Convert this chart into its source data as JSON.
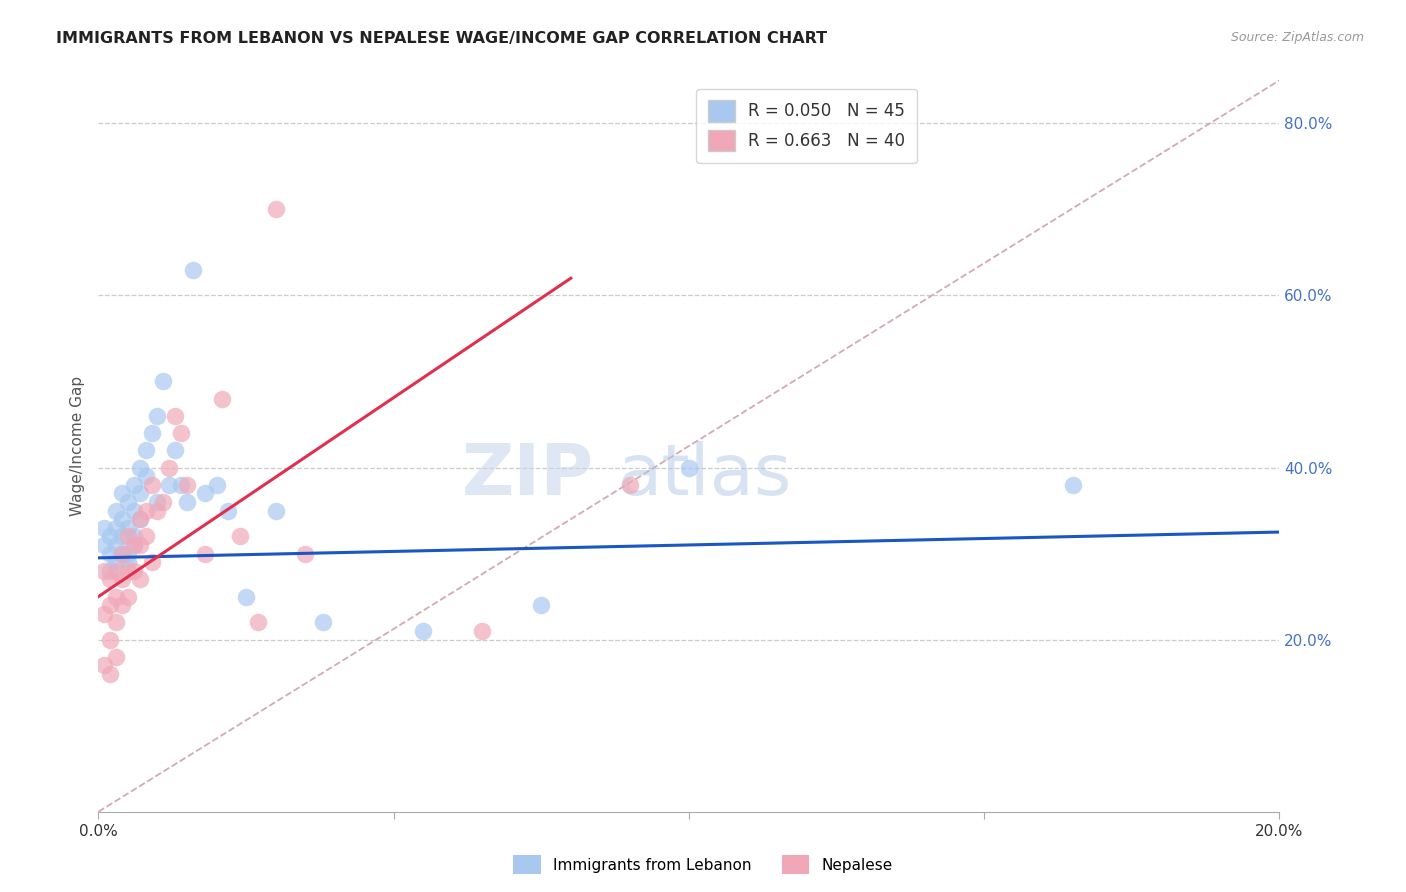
{
  "title": "IMMIGRANTS FROM LEBANON VS NEPALESE WAGE/INCOME GAP CORRELATION CHART",
  "source": "Source: ZipAtlas.com",
  "ylabel": "Wage/Income Gap",
  "xlim": [
    0.0,
    0.2
  ],
  "ylim": [
    0.0,
    0.85
  ],
  "legend_r1": "R = 0.050",
  "legend_n1": "N = 45",
  "legend_r2": "R = 0.663",
  "legend_n2": "N = 40",
  "color_blue": "#a8c8f0",
  "color_pink": "#f0a8b8",
  "color_line_blue": "#1a56c4",
  "color_line_pink": "#e03050",
  "color_diag": "#d0a0a8",
  "color_title": "#222222",
  "color_axis_right": "#4472c4",
  "watermark_zip": "ZIP",
  "watermark_atlas": "atlas",
  "blue_line_x0": 0.0,
  "blue_line_y0": 0.295,
  "blue_line_x1": 0.2,
  "blue_line_y1": 0.325,
  "pink_line_x0": 0.0,
  "pink_line_y0": 0.25,
  "pink_line_x1": 0.08,
  "pink_line_y1": 0.62,
  "blue_points_x": [
    0.001,
    0.001,
    0.002,
    0.002,
    0.002,
    0.003,
    0.003,
    0.003,
    0.003,
    0.004,
    0.004,
    0.004,
    0.004,
    0.005,
    0.005,
    0.005,
    0.005,
    0.006,
    0.006,
    0.006,
    0.006,
    0.007,
    0.007,
    0.007,
    0.008,
    0.008,
    0.009,
    0.01,
    0.01,
    0.011,
    0.012,
    0.013,
    0.014,
    0.015,
    0.016,
    0.018,
    0.02,
    0.022,
    0.025,
    0.03,
    0.038,
    0.055,
    0.075,
    0.1,
    0.165
  ],
  "blue_points_y": [
    0.31,
    0.33,
    0.3,
    0.32,
    0.28,
    0.31,
    0.33,
    0.35,
    0.29,
    0.32,
    0.3,
    0.37,
    0.34,
    0.3,
    0.33,
    0.36,
    0.29,
    0.38,
    0.32,
    0.35,
    0.31,
    0.4,
    0.37,
    0.34,
    0.42,
    0.39,
    0.44,
    0.46,
    0.36,
    0.5,
    0.38,
    0.42,
    0.38,
    0.36,
    0.63,
    0.37,
    0.38,
    0.35,
    0.25,
    0.35,
    0.22,
    0.21,
    0.24,
    0.4,
    0.38
  ],
  "pink_points_x": [
    0.001,
    0.001,
    0.001,
    0.002,
    0.002,
    0.002,
    0.002,
    0.003,
    0.003,
    0.003,
    0.003,
    0.004,
    0.004,
    0.004,
    0.005,
    0.005,
    0.005,
    0.006,
    0.006,
    0.007,
    0.007,
    0.007,
    0.008,
    0.008,
    0.009,
    0.009,
    0.01,
    0.011,
    0.012,
    0.013,
    0.014,
    0.015,
    0.018,
    0.021,
    0.024,
    0.027,
    0.03,
    0.035,
    0.065,
    0.09
  ],
  "pink_points_y": [
    0.28,
    0.23,
    0.17,
    0.27,
    0.24,
    0.2,
    0.16,
    0.28,
    0.25,
    0.22,
    0.18,
    0.3,
    0.27,
    0.24,
    0.32,
    0.28,
    0.25,
    0.31,
    0.28,
    0.34,
    0.31,
    0.27,
    0.35,
    0.32,
    0.38,
    0.29,
    0.35,
    0.36,
    0.4,
    0.46,
    0.44,
    0.38,
    0.3,
    0.48,
    0.32,
    0.22,
    0.7,
    0.3,
    0.21,
    0.38
  ]
}
